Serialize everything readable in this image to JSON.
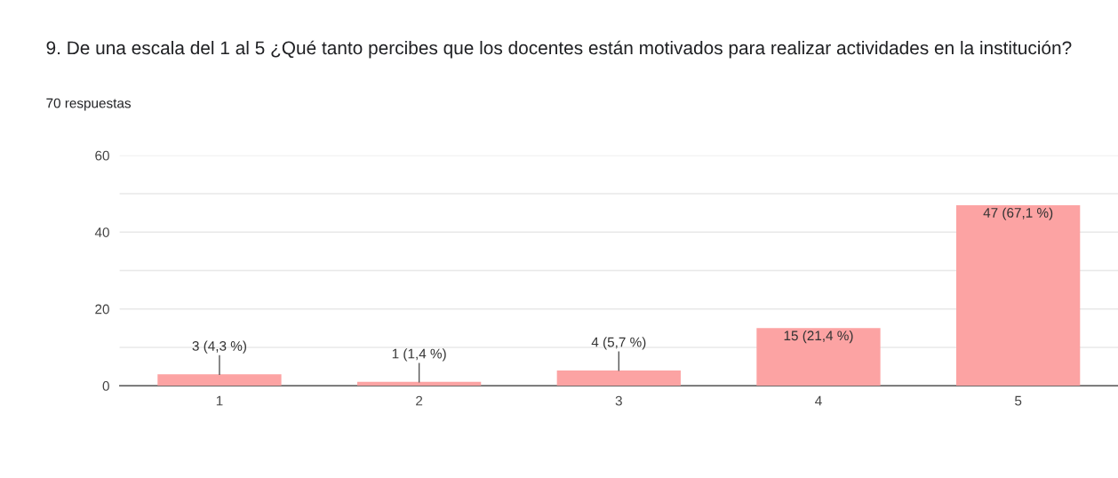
{
  "chart_data": {
    "type": "bar",
    "title": "9. De una escala del 1 al 5 ¿Qué tanto percibes que los docentes están motivados para realizar actividades en la institución?",
    "subtitle": "70 respuestas",
    "categories": [
      "1",
      "2",
      "3",
      "4",
      "5"
    ],
    "values": [
      3,
      1,
      4,
      15,
      47
    ],
    "color": "#fca3a3",
    "value_labels": [
      "3 (4,3 %)",
      "1 (1,4 %)",
      "4 (5,7 %)",
      "15 (21,4 %)",
      "47 (67,1 %)"
    ],
    "ylim": [
      0,
      60
    ],
    "yticks": [
      0,
      {
        "value": 10,
        "label": null
      },
      20,
      {
        "value": 30,
        "label": null
      },
      40,
      {
        "value": 50,
        "label": null
      },
      60
    ],
    "grid": "y",
    "legend": false
  }
}
